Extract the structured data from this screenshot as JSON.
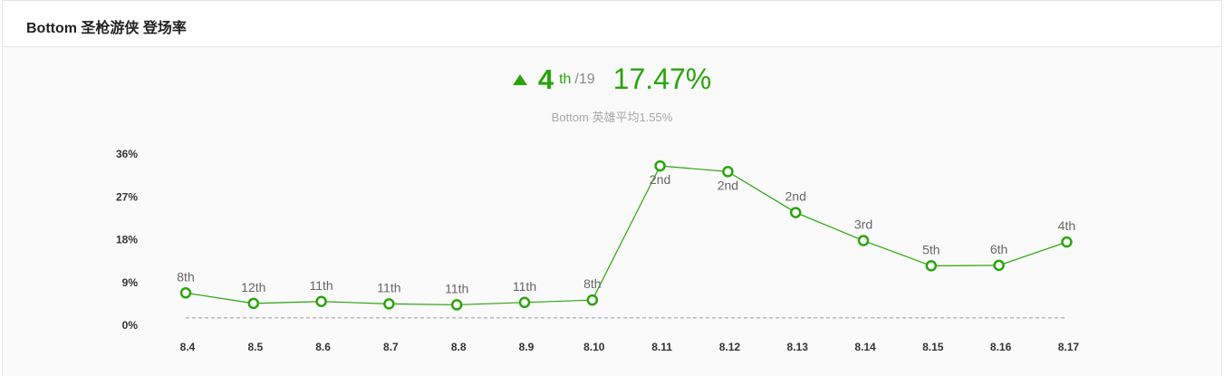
{
  "header": {
    "title": "Bottom 圣枪游侠 登场率"
  },
  "summary": {
    "trend_icon": "arrow-up-icon",
    "rank": "4",
    "rank_suffix": "th",
    "rank_total": "/19",
    "rate": "17.47%",
    "average_text": "Bottom 英雄平均1.55%"
  },
  "colors": {
    "accent": "#2aa40c",
    "average_line": "#999999"
  },
  "chart_data": {
    "type": "line",
    "title": "",
    "xlabel": "",
    "ylabel": "",
    "ylim": [
      0,
      36
    ],
    "yticks": [
      "36%",
      "27%",
      "18%",
      "9%",
      "0%"
    ],
    "ytick_values": [
      36,
      27,
      18,
      9,
      0
    ],
    "categories": [
      "8.4",
      "8.5",
      "8.6",
      "8.7",
      "8.8",
      "8.9",
      "8.10",
      "8.11",
      "8.12",
      "8.13",
      "8.14",
      "8.15",
      "8.16",
      "8.17"
    ],
    "values": [
      6.8,
      4.6,
      5.0,
      4.5,
      4.3,
      4.8,
      5.3,
      33.5,
      32.3,
      23.7,
      17.8,
      12.5,
      12.6,
      17.5
    ],
    "rank_labels": [
      "8th",
      "12th",
      "11th",
      "11th",
      "11th",
      "11th",
      "8th",
      "2nd",
      "2nd",
      "2nd",
      "3rd",
      "5th",
      "6th",
      "4th"
    ],
    "reference_line": 1.55,
    "grid": false,
    "legend": "none"
  }
}
